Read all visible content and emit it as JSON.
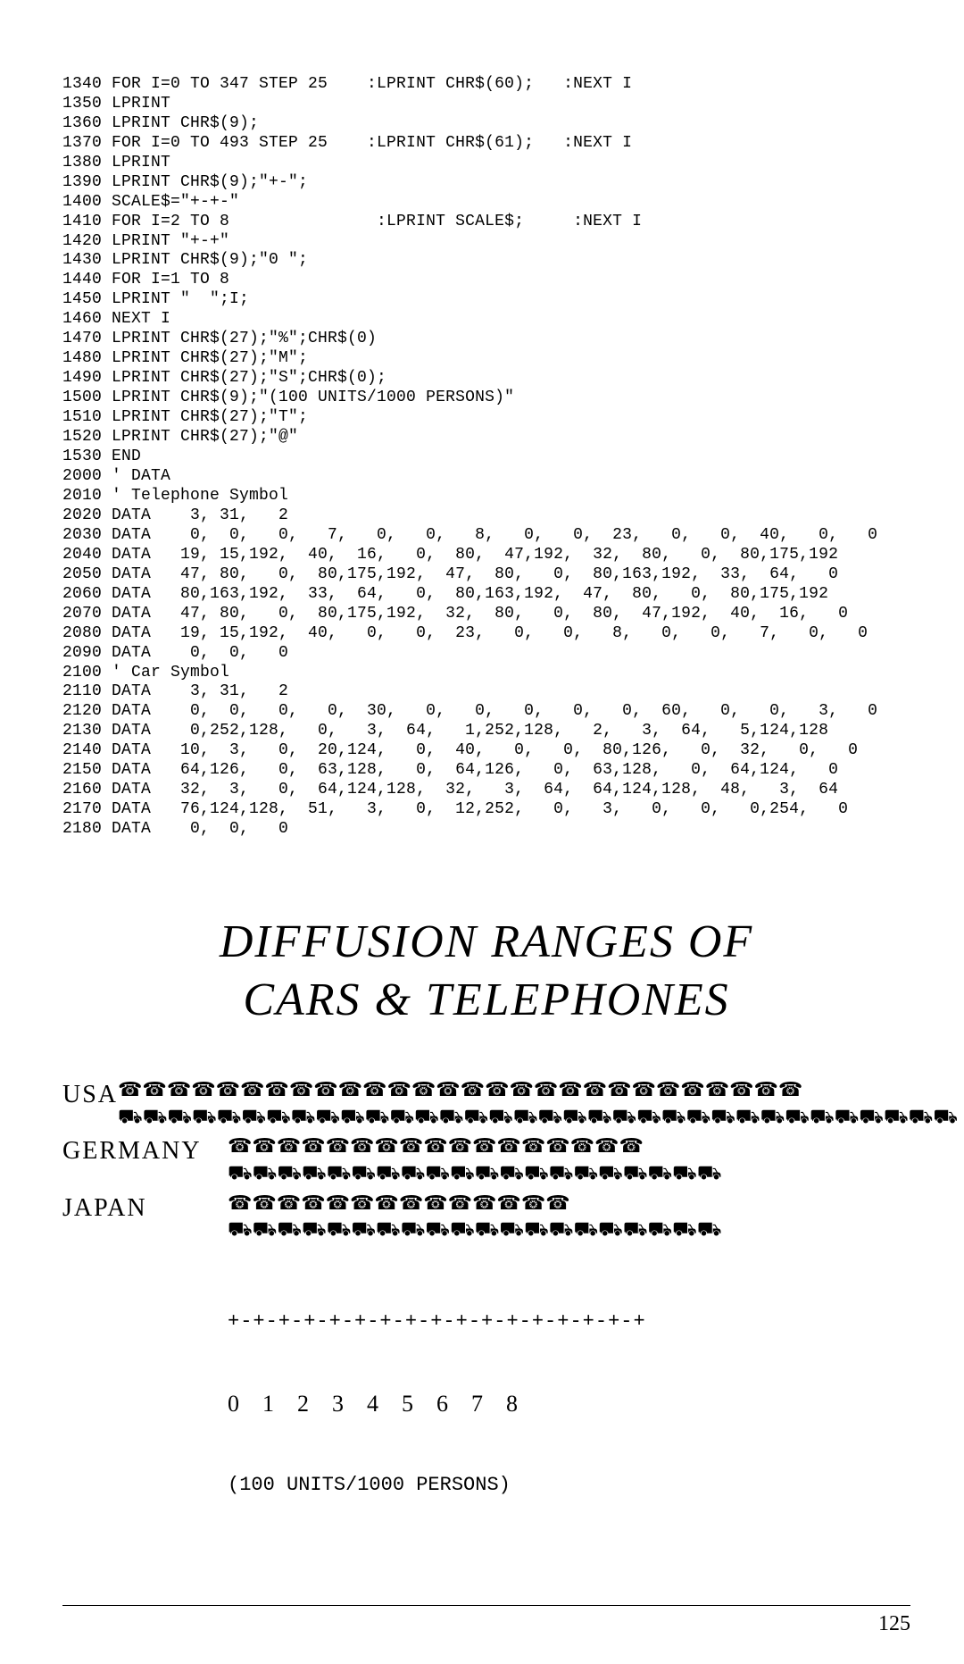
{
  "code": {
    "lines": [
      "1340 FOR I=0 TO 347 STEP 25    :LPRINT CHR$(60);   :NEXT I",
      "1350 LPRINT",
      "1360 LPRINT CHR$(9);",
      "1370 FOR I=0 TO 493 STEP 25    :LPRINT CHR$(61);   :NEXT I",
      "1380 LPRINT",
      "1390 LPRINT CHR$(9);\"+-\";",
      "1400 SCALE$=\"+-+-\"",
      "1410 FOR I=2 TO 8               :LPRINT SCALE$;     :NEXT I",
      "1420 LPRINT \"+-+\"",
      "1430 LPRINT CHR$(9);\"0 \";",
      "1440 FOR I=1 TO 8",
      "1450 LPRINT \"  \";I;",
      "1460 NEXT I",
      "1470 LPRINT CHR$(27);\"%\";CHR$(0)",
      "1480 LPRINT CHR$(27);\"M\";",
      "1490 LPRINT CHR$(27);\"S\";CHR$(0);",
      "1500 LPRINT CHR$(9);\"(100 UNITS/1000 PERSONS)\"",
      "1510 LPRINT CHR$(27);\"T\";",
      "1520 LPRINT CHR$(27);\"@\"",
      "1530 END",
      "2000 ' DATA",
      "2010 ' Telephone Symbol",
      "2020 DATA    3, 31,   2",
      "2030 DATA    0,  0,   0,   7,   0,   0,   8,   0,   0,  23,   0,   0,  40,   0,   0",
      "2040 DATA   19, 15,192,  40,  16,   0,  80,  47,192,  32,  80,   0,  80,175,192",
      "2050 DATA   47, 80,   0,  80,175,192,  47,  80,   0,  80,163,192,  33,  64,   0",
      "2060 DATA   80,163,192,  33,  64,   0,  80,163,192,  47,  80,   0,  80,175,192",
      "2070 DATA   47, 80,   0,  80,175,192,  32,  80,   0,  80,  47,192,  40,  16,   0",
      "2080 DATA   19, 15,192,  40,   0,   0,  23,   0,   0,   8,   0,   0,   7,   0,   0",
      "2090 DATA    0,  0,   0",
      "2100 ' Car Symbol",
      "2110 DATA    3, 31,   2",
      "2120 DATA    0,  0,   0,   0,  30,   0,   0,   0,   0,   0,  60,   0,   0,   3,   0",
      "2130 DATA    0,252,128,   0,   3,  64,   1,252,128,   2,   3,  64,   5,124,128",
      "2140 DATA   10,  3,   0,  20,124,   0,  40,   0,   0,  80,126,   0,  32,   0,   0",
      "2150 DATA   64,126,   0,  63,128,   0,  64,126,   0,  63,128,   0,  64,124,   0",
      "2160 DATA   32,  3,   0,  64,124,128,  32,   3,  64,  64,124,128,  48,   3,  64",
      "2170 DATA   76,124,128,  51,   3,   0,  12,252,   0,   3,   0,   0,   0,254,   0",
      "2180 DATA    0,  0,   0"
    ]
  },
  "hero": {
    "line1": "DIFFUSION  RANGES  OF",
    "line2": "CARS  &  TELEPHONES"
  },
  "chart": {
    "phone_glyph": "☎",
    "car_glyph": "⛟",
    "rows": [
      {
        "label": "USA",
        "phones": 28,
        "cars": 34
      },
      {
        "label": "GERMANY",
        "phones": 17,
        "cars": 20
      },
      {
        "label": "JAPAN",
        "phones": 14,
        "cars": 20
      }
    ],
    "axis_ticks": "+-+-+-+-+-+-+-+-+-+-+-+-+-+-+-+-+",
    "axis_nums": "0    1    2    3    4    5    6    7    8",
    "axis_caption": "(100 UNITS/1000 PERSONS)"
  },
  "footer": {
    "page": "125"
  },
  "style": {
    "phone_color": "#000000",
    "car_color": "#000000"
  }
}
